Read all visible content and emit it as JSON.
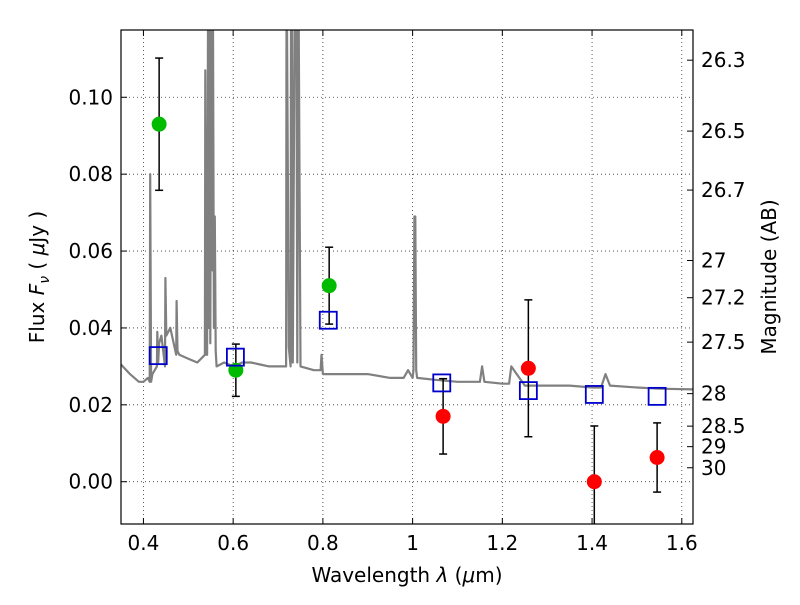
{
  "chart_data": {
    "type": "scatter",
    "xlabel": "Wavelength  λ (μm)",
    "ylabel": "Flux  Fν  ( μJy )",
    "ylabel_right": "Magnitude (AB)",
    "xlim": [
      0.35,
      1.625
    ],
    "ylim": [
      -0.011,
      0.1175
    ],
    "x_ticks": [
      0.4,
      0.6,
      0.8,
      1.0,
      1.2,
      1.4,
      1.6
    ],
    "x_tick_labels": [
      "0.4",
      "0.6",
      "0.8",
      "1",
      "1.2",
      "1.4",
      "1.6"
    ],
    "y_ticks": [
      0.0,
      0.02,
      0.04,
      0.06,
      0.08,
      0.1
    ],
    "y_tick_labels": [
      "0.00",
      "0.02",
      "0.04",
      "0.06",
      "0.08",
      "0.10"
    ],
    "mag_ticks": [
      "26.3",
      "26.5",
      "26.7",
      "27",
      "27.2",
      "27.5",
      "28",
      "28.5",
      "29",
      "30"
    ],
    "grid": true,
    "colors": {
      "green": "#00bb00",
      "red": "#ff0000",
      "model": "#0000cc",
      "spectrum": "#808080",
      "errorbar": "#000000"
    },
    "series": [
      {
        "marker": "circle",
        "color": "#00bb00",
        "x": [
          0.435,
          0.606,
          0.814
        ],
        "y": [
          0.093,
          0.029,
          0.051
        ],
        "yerr": [
          0.0172,
          0.0068,
          0.01
        ]
      },
      {
        "marker": "circle",
        "color": "#ff0000",
        "x": [
          1.068,
          1.258,
          1.405,
          1.545
        ],
        "y": [
          0.017,
          0.0295,
          0.0,
          0.0063
        ],
        "yerr": [
          0.0098,
          0.0178,
          0.0145,
          0.009
        ]
      },
      {
        "marker": "open-square",
        "color": "#0000cc",
        "x": [
          0.433,
          0.605,
          0.812,
          1.065,
          1.258,
          1.405,
          1.545
        ],
        "y": [
          0.0328,
          0.0324,
          0.042,
          0.0257,
          0.0237,
          0.0227,
          0.0222
        ]
      }
    ],
    "spectrum": {
      "x": [
        0.35,
        0.37,
        0.39,
        0.4,
        0.41,
        0.414,
        0.415,
        0.417,
        0.42,
        0.43,
        0.431,
        0.433,
        0.435,
        0.44,
        0.448,
        0.449,
        0.451,
        0.46,
        0.473,
        0.474,
        0.476,
        0.48,
        0.5,
        0.52,
        0.537,
        0.538,
        0.54,
        0.541,
        0.542,
        0.544,
        0.546,
        0.548,
        0.549,
        0.551,
        0.553,
        0.555,
        0.557,
        0.559,
        0.561,
        0.563,
        0.58,
        0.6,
        0.62,
        0.64,
        0.66,
        0.68,
        0.7,
        0.718,
        0.719,
        0.72,
        0.724,
        0.728,
        0.729,
        0.731,
        0.733,
        0.737,
        0.739,
        0.741,
        0.743,
        0.745,
        0.746,
        0.75,
        0.78,
        0.795,
        0.797,
        0.8,
        0.85,
        0.9,
        0.95,
        0.98,
        0.99,
        1.0,
        1.002,
        1.004,
        1.006,
        1.008,
        1.01,
        1.05,
        1.1,
        1.15,
        1.155,
        1.16,
        1.2,
        1.215,
        1.22,
        1.25,
        1.3,
        1.35,
        1.4,
        1.42,
        1.43,
        1.44,
        1.5,
        1.55,
        1.625
      ],
      "y": [
        0.0305,
        0.028,
        0.026,
        0.026,
        0.027,
        0.026,
        0.08,
        0.026,
        0.028,
        0.03,
        0.039,
        0.031,
        0.036,
        0.038,
        0.03,
        0.053,
        0.038,
        0.04,
        0.033,
        0.047,
        0.034,
        0.033,
        0.032,
        0.031,
        0.033,
        0.107,
        0.033,
        0.092,
        0.033,
        0.12,
        0.04,
        0.12,
        0.036,
        0.12,
        0.055,
        0.12,
        0.04,
        0.069,
        0.034,
        0.03,
        0.031,
        0.03,
        0.031,
        0.031,
        0.0305,
        0.03,
        0.03,
        0.03,
        0.12,
        0.12,
        0.035,
        0.03,
        0.12,
        0.12,
        0.031,
        0.12,
        0.12,
        0.12,
        0.031,
        0.12,
        0.12,
        0.03,
        0.029,
        0.029,
        0.033,
        0.028,
        0.028,
        0.028,
        0.027,
        0.027,
        0.029,
        0.027,
        0.029,
        0.069,
        0.069,
        0.029,
        0.027,
        0.0265,
        0.026,
        0.026,
        0.03,
        0.026,
        0.0255,
        0.0255,
        0.03,
        0.025,
        0.025,
        0.025,
        0.0245,
        0.0245,
        0.028,
        0.025,
        0.0245,
        0.0242,
        0.024
      ]
    }
  }
}
